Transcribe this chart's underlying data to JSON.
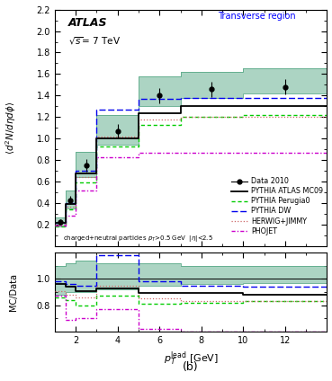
{
  "title_region": "Transverse region",
  "atlas_label": "ATLAS",
  "sqrt_s": "$\\sqrt{s}$= 7 TeV",
  "ylabel_main": "$\\langle d^2N/d\\eta d\\phi\\rangle$",
  "ylabel_ratio": "MC/Data",
  "xlabel": "$p_T^{\\mathrm{lead}}$ [GeV]",
  "footnote": "charged+neutral particles $p_T$>0.5 GeV  $|\\eta|$<2.5",
  "sublabel": "(b)",
  "xlim": [
    1.0,
    14.0
  ],
  "ylim_main": [
    0.0,
    2.2
  ],
  "ylim_ratio": [
    0.6,
    1.2
  ],
  "yticks_main": [
    0.2,
    0.4,
    0.6,
    0.8,
    1.0,
    1.2,
    1.4,
    1.6,
    1.8,
    2.0,
    2.2
  ],
  "yticks_ratio": [
    0.8,
    1.0
  ],
  "xticks": [
    2,
    4,
    6,
    8,
    10,
    12
  ],
  "bin_edges": [
    1.0,
    1.5,
    2.0,
    3.0,
    5.0,
    7.0,
    10.0,
    14.0
  ],
  "data_x": [
    1.25,
    1.75,
    2.5,
    4.0,
    6.0,
    8.5,
    12.0
  ],
  "data_y": [
    0.225,
    0.43,
    0.75,
    1.07,
    1.4,
    1.46,
    1.48
  ],
  "data_yerr_lo": [
    0.025,
    0.04,
    0.06,
    0.07,
    0.07,
    0.07,
    0.07
  ],
  "data_yerr_hi": [
    0.025,
    0.04,
    0.06,
    0.07,
    0.07,
    0.07,
    0.07
  ],
  "data_color": "black",
  "band_y_low": [
    0.18,
    0.35,
    0.64,
    0.94,
    1.3,
    1.38,
    1.42
  ],
  "band_y_high": [
    0.27,
    0.52,
    0.88,
    1.22,
    1.58,
    1.62,
    1.65
  ],
  "band_color": "#5aaa88",
  "band_alpha": 0.5,
  "mc09_y": [
    0.215,
    0.395,
    0.68,
    1.0,
    1.24,
    1.3,
    1.3
  ],
  "perugia_y": [
    0.185,
    0.345,
    0.595,
    0.93,
    1.13,
    1.2,
    1.22
  ],
  "dw_y": [
    0.215,
    0.4,
    0.7,
    1.27,
    1.37,
    1.38,
    1.38
  ],
  "herwig_y": [
    0.2,
    0.37,
    0.64,
    1.02,
    1.18,
    1.2,
    1.2
  ],
  "phojet_y": [
    0.19,
    0.285,
    0.52,
    0.83,
    0.87,
    0.87,
    0.87
  ],
  "mc09_color": "black",
  "perugia_color": "#00cc00",
  "dw_color": "#0000ee",
  "herwig_color": "#cc6666",
  "phojet_color": "#cc00cc",
  "ratio_band_low": [
    0.88,
    0.9,
    0.9,
    0.92,
    0.95,
    0.96,
    0.97
  ],
  "ratio_band_high": [
    1.1,
    1.12,
    1.14,
    1.12,
    1.12,
    1.1,
    1.1
  ],
  "ratio_mc09": [
    0.96,
    0.94,
    0.91,
    0.93,
    0.89,
    0.89,
    0.88
  ],
  "ratio_perugia": [
    0.86,
    0.84,
    0.8,
    0.87,
    0.81,
    0.82,
    0.83
  ],
  "ratio_dw": [
    0.98,
    0.96,
    0.95,
    1.18,
    0.98,
    0.95,
    0.94
  ],
  "ratio_herwig": [
    0.91,
    0.88,
    0.86,
    0.95,
    0.85,
    0.83,
    0.83
  ],
  "ratio_phojet": [
    0.87,
    0.69,
    0.7,
    0.77,
    0.62,
    0.6,
    0.6
  ]
}
